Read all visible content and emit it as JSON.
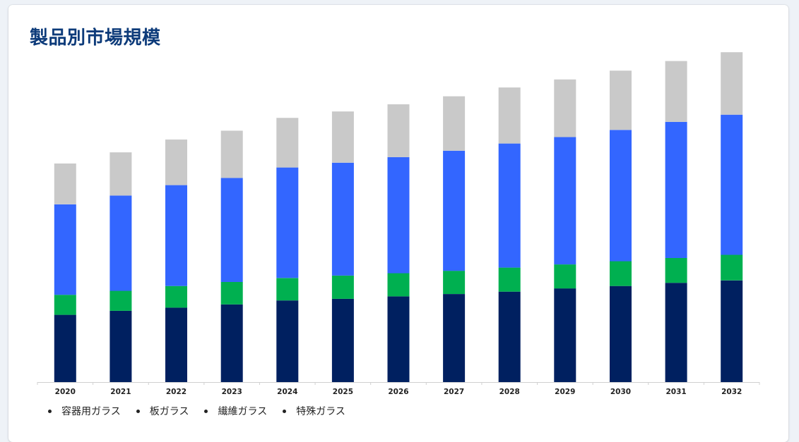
{
  "chart_data": {
    "type": "bar",
    "stacked": true,
    "title": "製品別市場規模",
    "categories": [
      "2020",
      "2021",
      "2022",
      "2023",
      "2024",
      "2025",
      "2026",
      "2027",
      "2028",
      "2029",
      "2030",
      "2031",
      "2032"
    ],
    "series": [
      {
        "name": "容器用ガラス",
        "color": "#002060",
        "values": [
          84,
          89,
          93,
          97,
          102,
          104,
          107,
          110,
          113,
          117,
          120,
          124,
          127
        ]
      },
      {
        "name": "板ガラス",
        "color": "#00b050",
        "values": [
          25,
          25,
          27,
          28,
          28,
          29,
          29,
          29,
          30,
          30,
          31,
          31,
          32
        ]
      },
      {
        "name": "繊維ガラス",
        "color": "#3366ff",
        "values": [
          113,
          119,
          126,
          130,
          138,
          141,
          145,
          150,
          155,
          159,
          164,
          170,
          175
        ]
      },
      {
        "name": "特殊ガラス",
        "color": "#c9c9c9",
        "values": [
          51,
          54,
          57,
          59,
          62,
          64,
          66,
          68,
          70,
          72,
          74,
          76,
          78
        ]
      }
    ],
    "xlabel": "",
    "ylabel": "",
    "ylim": [
      0,
      420
    ],
    "grid": false,
    "y_axis_visible": false,
    "legend_position": "bottom-left"
  }
}
